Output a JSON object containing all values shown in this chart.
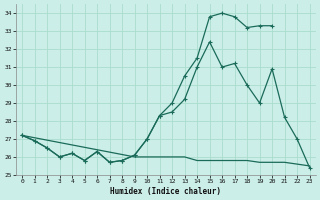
{
  "xlabel": "Humidex (Indice chaleur)",
  "bg_color": "#cceee8",
  "grid_color": "#aaddcc",
  "line_color": "#1a6b5a",
  "xlim": [
    -0.5,
    23.5
  ],
  "ylim": [
    25.0,
    34.5
  ],
  "yticks": [
    25,
    26,
    27,
    28,
    29,
    30,
    31,
    32,
    33,
    34
  ],
  "xticks": [
    0,
    1,
    2,
    3,
    4,
    5,
    6,
    7,
    8,
    9,
    10,
    11,
    12,
    13,
    14,
    15,
    16,
    17,
    18,
    19,
    20,
    21,
    22,
    23
  ],
  "line1_x": [
    0,
    1,
    2,
    3,
    4,
    5,
    6,
    7,
    8,
    9,
    10,
    11,
    12,
    13,
    14,
    15,
    16,
    17,
    18,
    19,
    20
  ],
  "line1_y": [
    27.2,
    26.9,
    26.5,
    26.0,
    26.2,
    25.8,
    26.3,
    25.7,
    25.8,
    26.1,
    27.0,
    28.3,
    29.0,
    30.5,
    31.5,
    33.8,
    34.0,
    33.8,
    33.2,
    33.3,
    33.3
  ],
  "line2_x": [
    0,
    1,
    2,
    3,
    4,
    5,
    6,
    7,
    8,
    9,
    10,
    11,
    12,
    13,
    14,
    15,
    16,
    17,
    18,
    19,
    20,
    21,
    22,
    23
  ],
  "line2_y": [
    27.2,
    26.9,
    26.5,
    26.0,
    26.2,
    25.8,
    26.3,
    25.7,
    25.8,
    26.1,
    27.0,
    28.3,
    28.5,
    29.2,
    31.0,
    32.4,
    31.0,
    31.2,
    30.0,
    29.0,
    30.9,
    28.2,
    27.0,
    25.4
  ],
  "line3_x": [
    0,
    9,
    10,
    11,
    12,
    13,
    14,
    15,
    16,
    17,
    18,
    19,
    20,
    21,
    22,
    23
  ],
  "line3_y": [
    27.2,
    26.0,
    26.0,
    26.0,
    26.0,
    26.0,
    25.8,
    25.8,
    25.8,
    25.8,
    25.8,
    25.7,
    25.7,
    25.7,
    25.6,
    25.5
  ]
}
